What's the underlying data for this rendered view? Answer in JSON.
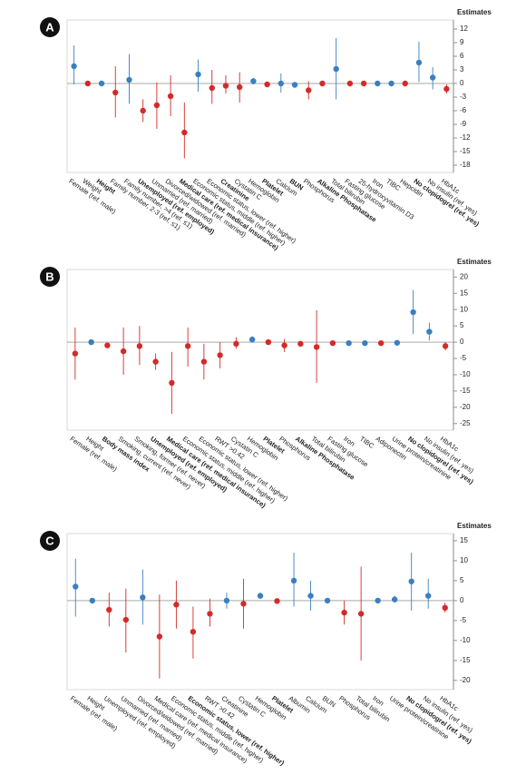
{
  "chart_data": [
    {
      "type": "errorbar",
      "panel_label": "A",
      "y_label": "Estimates",
      "categories": [
        "Female (ref. male)",
        "Weight",
        "Height",
        "Family number, 2-3 (ref. ≤1)",
        "Family number, >4 (ref. ≤1)",
        "Unemployed (ref. employed)",
        "Unmarried (ref. married)",
        "Divorced/widowed (ref. married)",
        "Medical care (ref. medical insurance)",
        "Economic status, middle (ref. higher)",
        "Economic status, lower (ref. higher)",
        "Creatinine",
        "Cystatin C",
        "Hemoglobin",
        "Platelet",
        "Calcium",
        "BUN",
        "Phosphorus",
        "Alkaline Phosphatase",
        "Total bilirubin",
        "Fasting glucose",
        "25-hydroxyvitamin D3",
        "Iron",
        "TIBC",
        "Hepcidin",
        "No clopidogrel (ref. yes)",
        "No insulin (ref. yes)",
        "HbA1c"
      ],
      "bold": [
        false,
        false,
        true,
        false,
        false,
        true,
        false,
        false,
        true,
        false,
        false,
        true,
        false,
        false,
        true,
        false,
        true,
        false,
        true,
        false,
        false,
        false,
        false,
        false,
        false,
        true,
        false,
        false
      ],
      "values": [
        3.8,
        0,
        0,
        -2,
        0.8,
        -6,
        -4.8,
        -2.8,
        -10.8,
        2,
        -1,
        -0.5,
        -0.8,
        0.5,
        -0.2,
        0,
        -0.3,
        -1.5,
        0,
        3.2,
        0,
        0,
        0,
        0,
        0,
        4.6,
        1.3,
        -1.2
      ],
      "ci_low": [
        -0.2,
        -0.5,
        -0.5,
        -7.5,
        -4.5,
        -8.5,
        -10,
        -7.2,
        -16.5,
        -1.8,
        -4.5,
        -2.2,
        -4.2,
        -0.2,
        -0.6,
        -2,
        -0.7,
        -3.5,
        -0.4,
        -3.5,
        -0.4,
        -0.4,
        -0.4,
        -0.4,
        -0.4,
        0.3,
        -1.3,
        -2.2
      ],
      "ci_high": [
        8.4,
        0.5,
        0.5,
        3.8,
        6.5,
        -3.5,
        0.2,
        1.8,
        -4.2,
        5.3,
        3,
        1.8,
        2.5,
        1.2,
        0.3,
        2.2,
        0.2,
        0.5,
        0.4,
        10,
        0.4,
        0.4,
        0.4,
        0.4,
        0.4,
        9.2,
        3.6,
        -0.2
      ],
      "colors": [
        "#3a7fc1",
        "#d42a2a",
        "#3a7fc1",
        "#d42a2a",
        "#3a7fc1",
        "#d42a2a",
        "#d42a2a",
        "#d42a2a",
        "#d42a2a",
        "#3a7fc1",
        "#d42a2a",
        "#d42a2a",
        "#d42a2a",
        "#3a7fc1",
        "#d42a2a",
        "#3a7fc1",
        "#3a7fc1",
        "#d42a2a",
        "#d42a2a",
        "#3a7fc1",
        "#d42a2a",
        "#d42a2a",
        "#3a7fc1",
        "#3a7fc1",
        "#d42a2a",
        "#3a7fc1",
        "#3a7fc1",
        "#d42a2a"
      ],
      "reference_line": 0,
      "ylim": [
        -19.6,
        14
      ],
      "yticks": [
        12,
        9,
        6,
        3,
        0,
        -3,
        -6,
        -9,
        -12,
        -15,
        -18
      ]
    },
    {
      "type": "errorbar",
      "panel_label": "B",
      "y_label": "Estimates",
      "categories": [
        "Female (ref. male)",
        "Height",
        "Body mass index",
        "Smoking, current (ref. never)",
        "Smoking, former (ref. never)",
        "Unemployed (ref. employed)",
        "Medical care (ref. medical insurance)",
        "Economic status, middle (ref. higher)",
        "Economic status, lower (ref. higher)",
        "RWT >0.42",
        "Cystatin C",
        "Hemoglobin",
        "Platelet",
        "Phosphorus",
        "Alkaline Phosphatase",
        "Total bilirubin",
        "Fasting glucose",
        "Iron",
        "TIBC",
        "Adiponectin",
        "Urine protein/creatinine",
        "No clopidogrel (ref. yes)",
        "No insulin (ref. yes)",
        "HbA1c"
      ],
      "bold": [
        false,
        false,
        true,
        false,
        false,
        true,
        true,
        false,
        false,
        false,
        false,
        false,
        true,
        false,
        true,
        false,
        false,
        false,
        false,
        false,
        false,
        true,
        false,
        false
      ],
      "values": [
        -3.5,
        0,
        -1,
        -2.8,
        -1.2,
        -6,
        -12.5,
        -1.2,
        -6,
        -4,
        -0.5,
        0.8,
        0,
        -1,
        -0.5,
        -1.5,
        -0.3,
        -0.3,
        -0.3,
        -0.3,
        -0.2,
        9.2,
        3.2,
        -1.2
      ],
      "ci_low": [
        -11.5,
        -0.5,
        -1.5,
        -10,
        -7,
        -8.5,
        -22,
        -7.5,
        -11.5,
        -8,
        -2,
        0,
        -0.5,
        -3,
        -1,
        -12.5,
        -0.8,
        -0.7,
        -0.7,
        -0.7,
        -0.6,
        2.5,
        0.5,
        -2.5
      ],
      "ci_high": [
        4.5,
        0.5,
        -0.5,
        4.5,
        5,
        -3.5,
        -3,
        4.5,
        -0.5,
        0,
        1.5,
        1.8,
        0.5,
        1,
        0,
        9.8,
        0.3,
        0.1,
        0.1,
        0.1,
        0.2,
        16,
        6,
        0
      ],
      "colors": [
        "#d42a2a",
        "#3a7fc1",
        "#d42a2a",
        "#d42a2a",
        "#d42a2a",
        "#d42a2a",
        "#d42a2a",
        "#d42a2a",
        "#d42a2a",
        "#d42a2a",
        "#d42a2a",
        "#3a7fc1",
        "#d42a2a",
        "#d42a2a",
        "#d42a2a",
        "#d42a2a",
        "#d42a2a",
        "#3a7fc1",
        "#3a7fc1",
        "#d42a2a",
        "#3a7fc1",
        "#3a7fc1",
        "#3a7fc1",
        "#d42a2a"
      ],
      "reference_line": 0,
      "ylim": [
        -27,
        22.3
      ],
      "yticks": [
        20,
        15,
        10,
        5,
        0,
        -5,
        -10,
        -15,
        -20,
        -25
      ]
    },
    {
      "type": "errorbar",
      "panel_label": "C",
      "y_label": "Estimates",
      "categories": [
        "Female (ref. male)",
        "Height",
        "Unemployed (ref. employed)",
        "Unmarried (ref. married)",
        "Divorced/widowed (ref. married)",
        "Medical care (ref. medical insurance)",
        "Economic status, middle (ref. higher)",
        "Economic status, lower (ref. higher)",
        "RWT >0.42",
        "Creatinine",
        "Cystatin C",
        "Hemoglobin",
        "Platelet",
        "Albumin",
        "Calcium",
        "BUN",
        "Phosphorus",
        "Total bilirubin",
        "Iron",
        "Urine protein/creatinine",
        "No clopidogrel (ref. yes)",
        "No insulin (ref. yes)",
        "HbA1c"
      ],
      "bold": [
        false,
        false,
        false,
        false,
        false,
        false,
        false,
        true,
        false,
        false,
        false,
        false,
        true,
        false,
        false,
        false,
        false,
        false,
        false,
        false,
        true,
        false,
        false
      ],
      "values": [
        3.5,
        0,
        -2.3,
        -4.8,
        0.8,
        -9,
        -1,
        -7.8,
        -3.3,
        0,
        -0.8,
        1.2,
        -0.1,
        5,
        1.2,
        0,
        -3,
        -3.3,
        0,
        0.3,
        4.8,
        1.2,
        -1.8
      ],
      "ci_low": [
        -4,
        -0.3,
        -6.5,
        -13,
        -6,
        -19.5,
        -7,
        -14.5,
        -6.5,
        -2,
        -7,
        0.5,
        -0.4,
        -1.5,
        -2.5,
        -0.3,
        -6,
        -15,
        -0.5,
        -0.5,
        -2.5,
        -2,
        -3
      ],
      "ci_high": [
        10.5,
        0.3,
        2,
        3,
        7.8,
        1.5,
        5,
        -1.5,
        0.5,
        2,
        5.5,
        2,
        0.3,
        12,
        5,
        0.3,
        0,
        8.5,
        0.3,
        1.2,
        12,
        5.5,
        -0.5
      ],
      "colors": [
        "#3a7fc1",
        "#3a7fc1",
        "#d42a2a",
        "#d42a2a",
        "#3a7fc1",
        "#d42a2a",
        "#d42a2a",
        "#d42a2a",
        "#d42a2a",
        "#3a7fc1",
        "#d42a2a",
        "#3a7fc1",
        "#d42a2a",
        "#3a7fc1",
        "#3a7fc1",
        "#3a7fc1",
        "#d42a2a",
        "#d42a2a",
        "#3a7fc1",
        "#3a7fc1",
        "#3a7fc1",
        "#3a7fc1",
        "#d42a2a"
      ],
      "reference_line": 0,
      "ylim": [
        -22.3,
        16.8
      ],
      "yticks": [
        15,
        10,
        5,
        0,
        -5,
        -10,
        -15,
        -20
      ]
    }
  ]
}
